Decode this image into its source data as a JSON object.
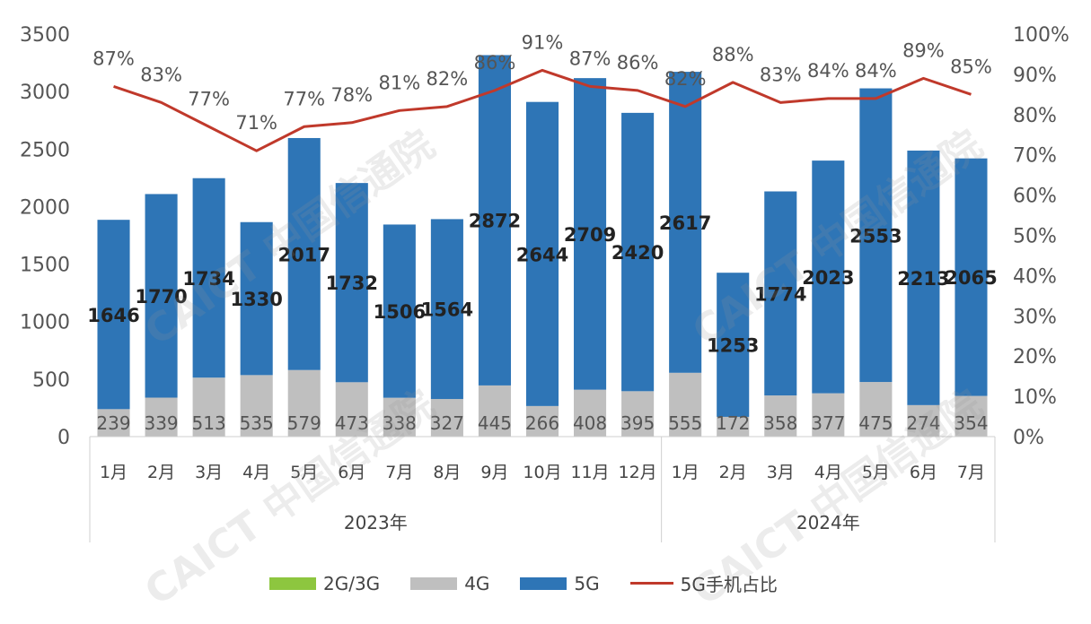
{
  "chart_data": {
    "type": "bar",
    "stacked": true,
    "categories": [
      "1月",
      "2月",
      "3月",
      "4月",
      "5月",
      "6月",
      "7月",
      "8月",
      "9月",
      "10月",
      "11月",
      "12月",
      "1月",
      "2月",
      "3月",
      "4月",
      "5月",
      "6月",
      "7月"
    ],
    "groups": [
      {
        "label": "2023年",
        "count": 12
      },
      {
        "label": "2024年",
        "count": 7
      }
    ],
    "series": [
      {
        "name": "2G/3G",
        "color": "#8dc63f",
        "values": [
          0,
          0,
          0,
          0,
          0,
          0,
          0,
          0,
          0,
          0,
          0,
          0,
          0,
          0,
          0,
          0,
          0,
          0,
          0
        ]
      },
      {
        "name": "4G",
        "color": "#bfbfbf",
        "values": [
          239,
          339,
          513,
          535,
          579,
          473,
          338,
          327,
          445,
          266,
          408,
          395,
          555,
          172,
          358,
          377,
          475,
          274,
          354
        ]
      },
      {
        "name": "5G",
        "color": "#2e75b6",
        "values": [
          1646,
          1770,
          1734,
          1330,
          2017,
          1732,
          1506,
          1564,
          2872,
          2644,
          2709,
          2420,
          2617,
          1253,
          1774,
          2023,
          2553,
          2213,
          2065
        ]
      }
    ],
    "line_series": {
      "name": "5G手机占比",
      "color": "#c0392b",
      "axis": "right",
      "values": [
        87,
        83,
        77,
        71,
        77,
        78,
        81,
        82,
        86,
        91,
        87,
        86,
        82,
        88,
        83,
        84,
        84,
        89,
        85
      ],
      "labels": [
        "87%",
        "83%",
        "77%",
        "71%",
        "77%",
        "78%",
        "81%",
        "82%",
        "86%",
        "91%",
        "87%",
        "86%",
        "82%",
        "88%",
        "83%",
        "84%",
        "84%",
        "89%",
        "85%"
      ]
    },
    "y_left": {
      "min": 0,
      "max": 3500,
      "ticks": [
        "0",
        "500",
        "1000",
        "1500",
        "2000",
        "2500",
        "3000",
        "3500"
      ]
    },
    "y_right": {
      "min": 0,
      "max": 100,
      "ticks": [
        "0%",
        "10%",
        "20%",
        "30%",
        "40%",
        "50%",
        "60%",
        "70%",
        "80%",
        "90%",
        "100%"
      ]
    },
    "legend_position": "bottom",
    "grid": false
  },
  "watermark": "CAICT 中国信通院"
}
